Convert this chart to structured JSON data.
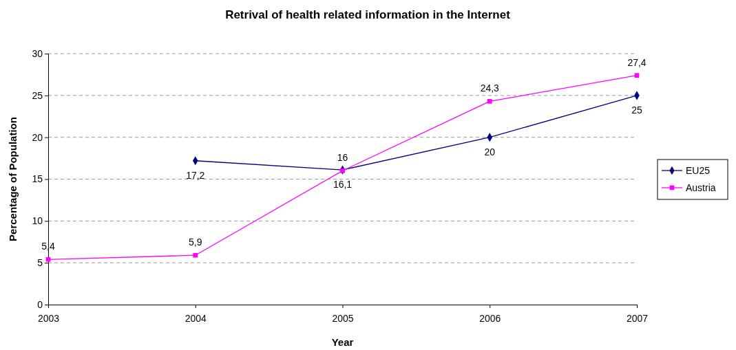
{
  "chart_data": {
    "type": "line",
    "title": "Retrival of health related information in the Internet",
    "xlabel": "Year",
    "ylabel": "Percentage of Population",
    "x": [
      2003,
      2004,
      2005,
      2006,
      2007
    ],
    "xlim": [
      2003,
      2007
    ],
    "xticks": [
      2003,
      2004,
      2005,
      2006,
      2007
    ],
    "ylim": [
      0,
      30
    ],
    "yticks": [
      0,
      5,
      10,
      15,
      20,
      25,
      30
    ],
    "grid": "y",
    "legend": "right",
    "series": [
      {
        "name": "EU25",
        "color": "#000080",
        "marker": "diamond",
        "values": [
          null,
          17.2,
          16.1,
          20,
          25
        ],
        "value_labels": [
          null,
          "17,2",
          "16,1",
          "20",
          "25"
        ]
      },
      {
        "name": "Austria",
        "color": "#ff00ff",
        "marker": "square",
        "values": [
          5.4,
          5.9,
          16,
          24.3,
          27.4
        ],
        "value_labels": [
          "5,4",
          "5,9",
          "16",
          "24,3",
          "27,4"
        ]
      }
    ]
  }
}
